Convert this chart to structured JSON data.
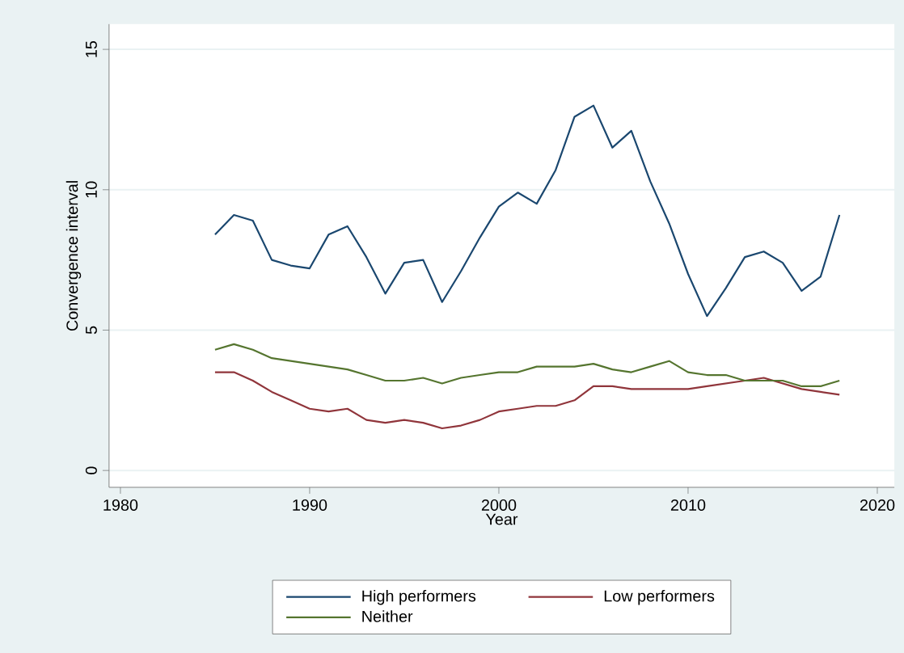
{
  "chart_data": {
    "type": "line",
    "xlabel": "Year",
    "ylabel": "Convergence interval",
    "x": [
      1985,
      1986,
      1987,
      1988,
      1989,
      1990,
      1991,
      1992,
      1993,
      1994,
      1995,
      1996,
      1997,
      1998,
      1999,
      2000,
      2001,
      2002,
      2003,
      2004,
      2005,
      2006,
      2007,
      2008,
      2009,
      2010,
      2011,
      2012,
      2013,
      2014,
      2015,
      2016,
      2017,
      2018
    ],
    "series": [
      {
        "name": "High performers",
        "color": "#1a476f",
        "values": [
          8.4,
          9.1,
          8.9,
          7.5,
          7.3,
          7.2,
          8.4,
          8.7,
          7.6,
          6.3,
          7.4,
          7.5,
          6.0,
          7.1,
          8.3,
          9.4,
          9.9,
          9.5,
          10.7,
          12.6,
          13.0,
          11.5,
          12.1,
          10.3,
          8.8,
          7.0,
          5.5,
          6.5,
          7.6,
          7.8,
          7.4,
          6.4,
          6.9,
          9.1
        ]
      },
      {
        "name": "Low performers",
        "color": "#90353b",
        "values": [
          3.5,
          3.5,
          3.2,
          2.8,
          2.5,
          2.2,
          2.1,
          2.2,
          1.8,
          1.7,
          1.8,
          1.7,
          1.5,
          1.6,
          1.8,
          2.1,
          2.2,
          2.3,
          2.3,
          2.5,
          3.0,
          3.0,
          2.9,
          2.9,
          2.9,
          2.9,
          3.0,
          3.1,
          3.2,
          3.3,
          3.1,
          2.9,
          2.8,
          2.7
        ]
      },
      {
        "name": "Neither",
        "color": "#55752f",
        "values": [
          4.3,
          4.5,
          4.3,
          4.0,
          3.9,
          3.8,
          3.7,
          3.6,
          3.4,
          3.2,
          3.2,
          3.3,
          3.1,
          3.3,
          3.4,
          3.5,
          3.5,
          3.7,
          3.7,
          3.7,
          3.8,
          3.6,
          3.5,
          3.7,
          3.9,
          3.5,
          3.4,
          3.4,
          3.2,
          3.2,
          3.2,
          3.0,
          3.0,
          3.2
        ]
      }
    ],
    "xlim": [
      1979.4,
      2020.9
    ],
    "ylim": [
      -0.6,
      15.9
    ],
    "xticks": [
      1980,
      1990,
      2000,
      2010,
      2020
    ],
    "yticks": [
      0,
      5,
      10,
      15
    ],
    "grid": "y",
    "legend": "bottom"
  }
}
